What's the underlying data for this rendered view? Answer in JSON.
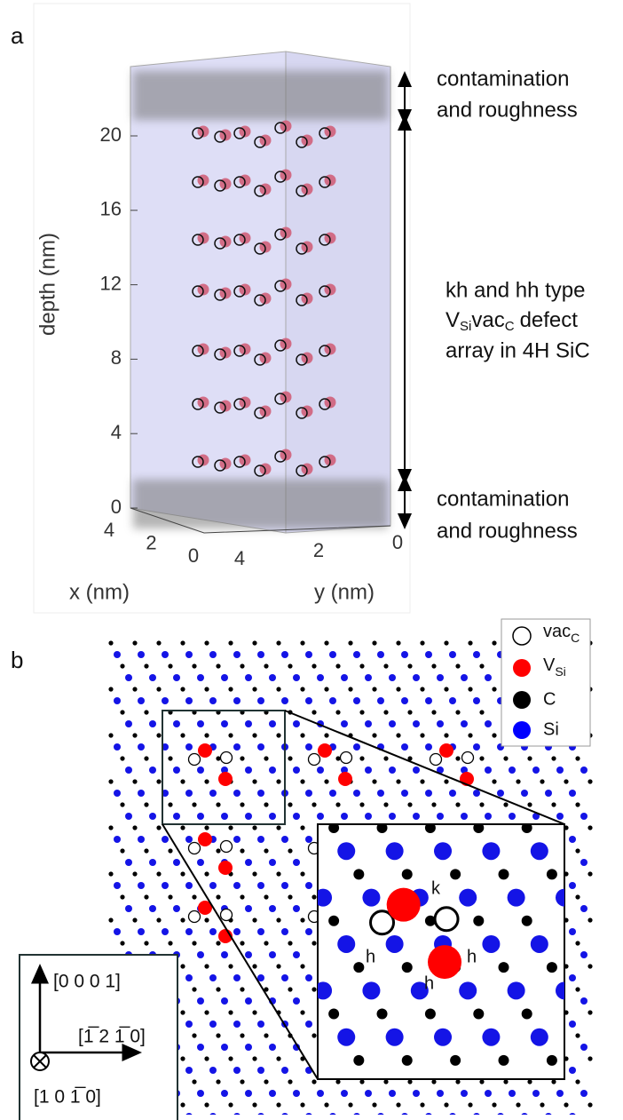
{
  "panel_a": {
    "label": "a",
    "y_axis": {
      "label": "depth (nm)",
      "ticks": [
        0,
        4,
        8,
        12,
        16,
        20
      ]
    },
    "x_axis": {
      "label": "x (nm)",
      "ticks": [
        4,
        2,
        0
      ]
    },
    "y2_axis": {
      "label": "y (nm)",
      "ticks": [
        4,
        2,
        0
      ]
    },
    "annotations": {
      "top": [
        "contamination",
        "and roughness"
      ],
      "middle": {
        "line1": "kh and hh type",
        "line2": [
          "V",
          "Si",
          "vac",
          "C",
          "defect"
        ],
        "line3": "array in 4H SiC"
      },
      "bottom": [
        "contamination",
        "and roughness"
      ]
    }
  },
  "panel_b": {
    "label": "b",
    "legend": [
      {
        "label": "vac",
        "sub": "C"
      },
      {
        "label": "V",
        "sub": "Si"
      },
      {
        "label": "C"
      },
      {
        "label": "Si"
      }
    ],
    "site_labels": [
      "k",
      "h",
      "h",
      "h"
    ],
    "directions": [
      "[0 0 0 1]",
      "[1̅ 2 1̅ 0]",
      "[1 0 1̅ 0]"
    ]
  }
}
